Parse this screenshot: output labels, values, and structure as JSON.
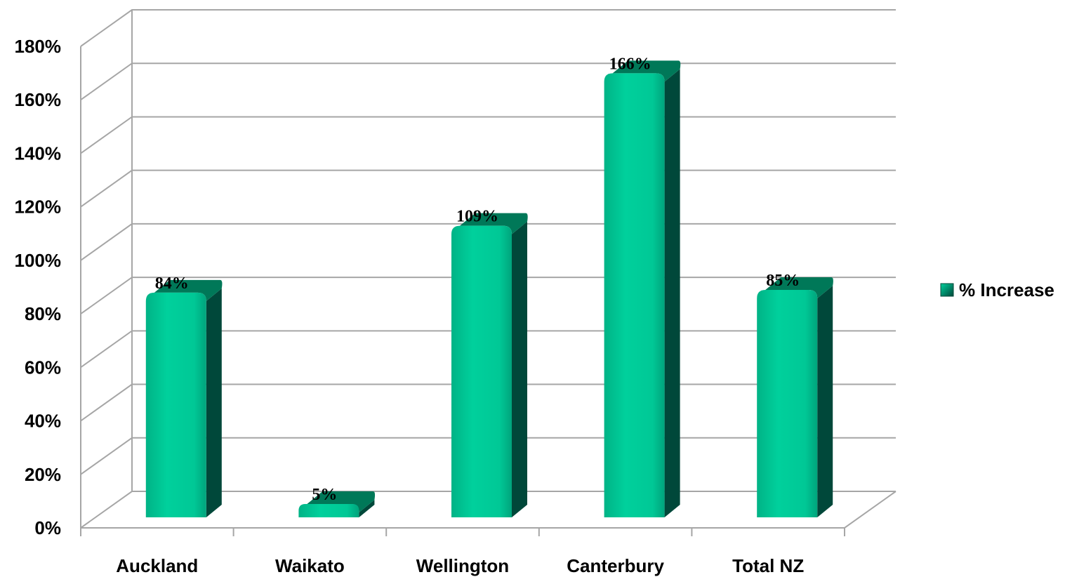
{
  "chart_data": {
    "type": "bar",
    "categories": [
      "Auckland",
      "Waikato",
      "Wellington",
      "Canterbury",
      "Total NZ"
    ],
    "series": [
      {
        "name": "% Increase",
        "values": [
          84,
          5,
          109,
          166,
          85
        ]
      }
    ],
    "data_labels": [
      "84%",
      "5%",
      "109%",
      "166%",
      "85%"
    ],
    "ylim": [
      0,
      180
    ],
    "y_ticks": [
      0,
      20,
      40,
      60,
      80,
      100,
      120,
      140,
      160,
      180
    ],
    "y_tick_labels": [
      "0%",
      "20%",
      "40%",
      "60%",
      "80%",
      "100%",
      "120%",
      "140%",
      "160%",
      "180%"
    ],
    "grid": true,
    "legend_position": "right",
    "style": "3d-column",
    "colors": {
      "bar_front": "#00c896",
      "bar_side": "#00483a",
      "bar_top": "#007858",
      "grid": "#a6a6a6"
    }
  }
}
